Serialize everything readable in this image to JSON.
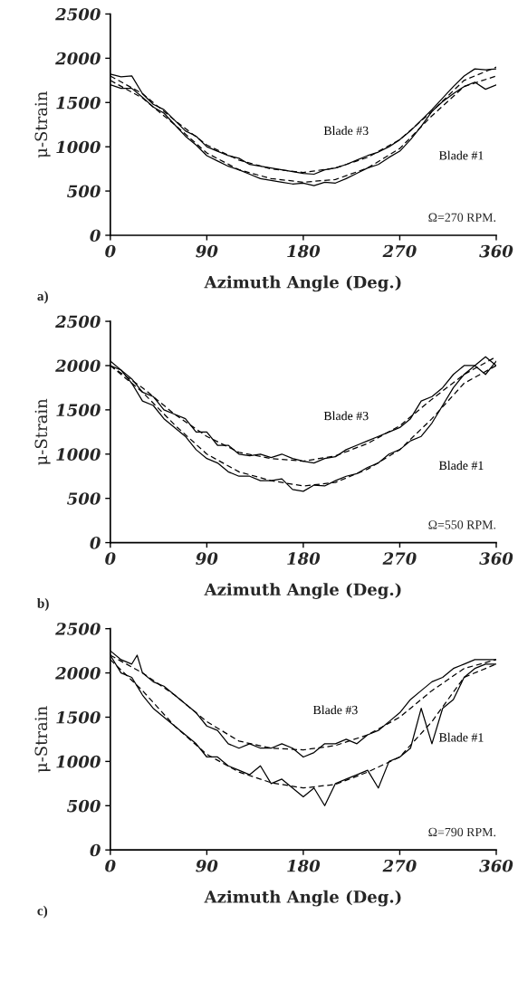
{
  "chart_data": [
    {
      "type": "line",
      "xlabel": "Azimuth Angle (Deg.)",
      "ylabel": "μ-Strain",
      "xlim": [
        0,
        360
      ],
      "xticks": [
        0,
        90,
        180,
        270,
        360
      ],
      "ylim": [
        0,
        2500
      ],
      "yticks": [
        0,
        500,
        1000,
        1500,
        2000,
        2500
      ],
      "grid": false,
      "legend": false,
      "marker": "none",
      "annotations": [
        "Ω=270 RPM.",
        "a)"
      ],
      "series": [
        {
          "name": "Blade #3",
          "color": "#000000",
          "line_style": "solid",
          "x": [
            0,
            10,
            20,
            30,
            40,
            50,
            60,
            70,
            80,
            90,
            100,
            110,
            120,
            130,
            140,
            150,
            160,
            170,
            180,
            190,
            200,
            210,
            220,
            230,
            240,
            250,
            260,
            270,
            280,
            290,
            300,
            310,
            320,
            330,
            340,
            350,
            360
          ],
          "values": [
            1820,
            1790,
            1800,
            1600,
            1480,
            1420,
            1300,
            1180,
            1120,
            1000,
            950,
            900,
            870,
            800,
            780,
            760,
            740,
            720,
            700,
            690,
            740,
            760,
            800,
            850,
            900,
            940,
            1000,
            1080,
            1180,
            1300,
            1420,
            1550,
            1680,
            1800,
            1880,
            1870,
            1880
          ]
        },
        {
          "name": "Blade #1",
          "color": "#000000",
          "line_style": "solid",
          "x": [
            0,
            10,
            20,
            30,
            40,
            50,
            60,
            70,
            80,
            90,
            100,
            110,
            120,
            130,
            140,
            150,
            160,
            170,
            180,
            190,
            200,
            210,
            220,
            230,
            240,
            250,
            260,
            270,
            280,
            290,
            300,
            310,
            320,
            330,
            340,
            350,
            360
          ],
          "values": [
            1700,
            1660,
            1660,
            1560,
            1450,
            1380,
            1250,
            1120,
            1020,
            900,
            840,
            780,
            740,
            690,
            640,
            620,
            600,
            580,
            590,
            560,
            600,
            590,
            640,
            700,
            760,
            800,
            880,
            950,
            1080,
            1230,
            1400,
            1510,
            1600,
            1680,
            1730,
            1650,
            1700
          ]
        },
        {
          "color": "#000000",
          "line_style": "dashed",
          "x": [
            0,
            30,
            60,
            90,
            120,
            150,
            180,
            210,
            240,
            270,
            300,
            330,
            360
          ],
          "values": [
            1800,
            1600,
            1300,
            1020,
            850,
            750,
            710,
            760,
            880,
            1080,
            1400,
            1750,
            1900
          ]
        },
        {
          "color": "#000000",
          "line_style": "dashed",
          "x": [
            0,
            30,
            60,
            90,
            120,
            150,
            180,
            210,
            240,
            270,
            300,
            330,
            360
          ],
          "values": [
            1750,
            1550,
            1250,
            930,
            740,
            640,
            600,
            630,
            760,
            980,
            1350,
            1680,
            1800
          ]
        }
      ]
    },
    {
      "type": "line",
      "xlabel": "Azimuth Angle (Deg.)",
      "ylabel": "μ-Strain",
      "xlim": [
        0,
        360
      ],
      "xticks": [
        0,
        90,
        180,
        270,
        360
      ],
      "ylim": [
        0,
        2500
      ],
      "yticks": [
        0,
        500,
        1000,
        1500,
        2000,
        2500
      ],
      "grid": false,
      "legend": false,
      "marker": "none",
      "annotations": [
        "Ω=550 RPM.",
        "b)"
      ],
      "series": [
        {
          "name": "Blade #3",
          "color": "#000000",
          "line_style": "solid",
          "x": [
            0,
            10,
            20,
            30,
            40,
            50,
            60,
            70,
            80,
            90,
            100,
            110,
            120,
            130,
            140,
            150,
            160,
            170,
            180,
            190,
            200,
            210,
            220,
            230,
            240,
            250,
            260,
            270,
            280,
            290,
            300,
            310,
            320,
            330,
            340,
            350,
            360
          ],
          "values": [
            2000,
            1950,
            1850,
            1700,
            1650,
            1500,
            1450,
            1400,
            1250,
            1250,
            1100,
            1100,
            1000,
            980,
            1000,
            960,
            1000,
            950,
            920,
            900,
            950,
            970,
            1050,
            1100,
            1150,
            1200,
            1250,
            1300,
            1400,
            1600,
            1650,
            1750,
            1900,
            2000,
            2000,
            2100,
            2000
          ]
        },
        {
          "name": "Blade #1",
          "color": "#000000",
          "line_style": "solid",
          "x": [
            0,
            10,
            20,
            30,
            40,
            50,
            60,
            70,
            80,
            90,
            100,
            110,
            120,
            130,
            140,
            150,
            160,
            170,
            180,
            190,
            200,
            210,
            220,
            230,
            240,
            250,
            260,
            270,
            280,
            290,
            300,
            310,
            320,
            330,
            340,
            350,
            360
          ],
          "values": [
            2050,
            1950,
            1800,
            1600,
            1550,
            1400,
            1300,
            1200,
            1050,
            950,
            900,
            800,
            750,
            750,
            700,
            700,
            720,
            600,
            580,
            650,
            640,
            700,
            750,
            780,
            850,
            900,
            1000,
            1050,
            1150,
            1200,
            1350,
            1550,
            1750,
            1900,
            2000,
            1900,
            2050
          ]
        },
        {
          "color": "#000000",
          "line_style": "dashed",
          "x": [
            0,
            30,
            60,
            90,
            120,
            150,
            180,
            210,
            240,
            270,
            300,
            330,
            360
          ],
          "values": [
            2000,
            1750,
            1450,
            1200,
            1020,
            950,
            920,
            980,
            1120,
            1320,
            1620,
            1900,
            2100
          ]
        },
        {
          "color": "#000000",
          "line_style": "dashed",
          "x": [
            0,
            30,
            60,
            90,
            120,
            150,
            180,
            210,
            240,
            270,
            300,
            330,
            360
          ],
          "values": [
            2000,
            1700,
            1330,
            1000,
            800,
            700,
            640,
            680,
            830,
            1050,
            1400,
            1800,
            2000
          ]
        }
      ]
    },
    {
      "type": "line",
      "xlabel": "Azimuth Angle (Deg.)",
      "ylabel": "μ-Strain",
      "xlim": [
        0,
        360
      ],
      "xticks": [
        0,
        90,
        180,
        270,
        360
      ],
      "ylim": [
        0,
        2500
      ],
      "yticks": [
        0,
        500,
        1000,
        1500,
        2000,
        2500
      ],
      "grid": false,
      "legend": false,
      "marker": "none",
      "annotations": [
        "Ω=790 RPM.",
        "c)"
      ],
      "series": [
        {
          "name": "Blade #3",
          "color": "#000000",
          "line_style": "solid",
          "x": [
            0,
            10,
            20,
            25,
            30,
            40,
            50,
            60,
            70,
            80,
            90,
            100,
            110,
            120,
            130,
            140,
            150,
            160,
            170,
            180,
            190,
            200,
            210,
            220,
            230,
            240,
            250,
            260,
            270,
            280,
            290,
            300,
            310,
            320,
            330,
            340,
            350,
            360
          ],
          "values": [
            2250,
            2150,
            2100,
            2200,
            2000,
            1900,
            1850,
            1750,
            1650,
            1550,
            1400,
            1350,
            1200,
            1150,
            1200,
            1150,
            1150,
            1200,
            1150,
            1050,
            1100,
            1200,
            1200,
            1250,
            1200,
            1300,
            1350,
            1450,
            1550,
            1700,
            1800,
            1900,
            1950,
            2050,
            2100,
            2150,
            2150,
            2150
          ]
        },
        {
          "name": "Blade #1",
          "color": "#000000",
          "line_style": "solid",
          "x": [
            0,
            10,
            20,
            30,
            40,
            50,
            60,
            70,
            80,
            90,
            100,
            110,
            120,
            130,
            140,
            150,
            160,
            170,
            180,
            190,
            200,
            210,
            220,
            230,
            240,
            250,
            260,
            270,
            280,
            290,
            300,
            310,
            320,
            330,
            340,
            350,
            360
          ],
          "values": [
            2200,
            2000,
            1950,
            1750,
            1600,
            1500,
            1400,
            1300,
            1200,
            1050,
            1050,
            950,
            900,
            850,
            950,
            750,
            800,
            700,
            600,
            700,
            500,
            750,
            800,
            850,
            900,
            700,
            1000,
            1050,
            1150,
            1600,
            1200,
            1600,
            1700,
            1950,
            2050,
            2100,
            2100
          ]
        },
        {
          "color": "#000000",
          "line_style": "dashed",
          "x": [
            0,
            30,
            60,
            90,
            120,
            150,
            180,
            210,
            240,
            270,
            300,
            330,
            360
          ],
          "values": [
            2200,
            2000,
            1750,
            1450,
            1230,
            1150,
            1130,
            1180,
            1300,
            1500,
            1800,
            2050,
            2150
          ]
        },
        {
          "color": "#000000",
          "line_style": "dashed",
          "x": [
            0,
            30,
            60,
            90,
            120,
            150,
            180,
            210,
            240,
            270,
            300,
            330,
            360
          ],
          "values": [
            2150,
            1800,
            1400,
            1080,
            880,
            760,
            700,
            740,
            880,
            1050,
            1450,
            1950,
            2100
          ]
        }
      ]
    }
  ]
}
